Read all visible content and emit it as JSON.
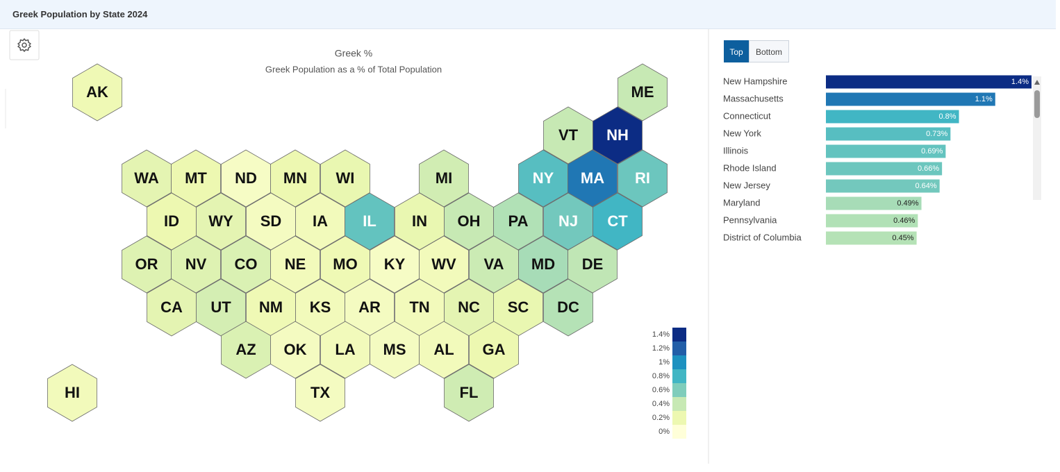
{
  "header": {
    "title": "Greek Population by State 2024"
  },
  "tabs": [
    "Top",
    "Bottom"
  ],
  "chart_data": [
    {
      "type": "hexmap",
      "title": "Greek %",
      "subtitle": "Greek Population as a % of Total Population",
      "categories": [
        "AK",
        "ME",
        "VT",
        "NH",
        "WA",
        "MT",
        "ND",
        "MN",
        "WI",
        "MI",
        "NY",
        "MA",
        "RI",
        "ID",
        "WY",
        "SD",
        "IA",
        "IL",
        "IN",
        "OH",
        "PA",
        "NJ",
        "CT",
        "OR",
        "NV",
        "CO",
        "NE",
        "MO",
        "KY",
        "WV",
        "VA",
        "MD",
        "DE",
        "CA",
        "UT",
        "NM",
        "KS",
        "AR",
        "TN",
        "NC",
        "SC",
        "DC",
        "AZ",
        "OK",
        "LA",
        "MS",
        "AL",
        "GA",
        "HI",
        "TX",
        "FL"
      ],
      "values": [
        0.18,
        0.4,
        0.4,
        1.4,
        0.25,
        0.2,
        0.1,
        0.2,
        0.22,
        0.35,
        0.73,
        1.1,
        0.66,
        0.2,
        0.25,
        0.12,
        0.15,
        0.69,
        0.22,
        0.4,
        0.46,
        0.64,
        0.8,
        0.28,
        0.28,
        0.3,
        0.15,
        0.18,
        0.1,
        0.15,
        0.38,
        0.49,
        0.42,
        0.25,
        0.33,
        0.18,
        0.15,
        0.12,
        0.15,
        0.25,
        0.22,
        0.45,
        0.3,
        0.12,
        0.15,
        0.12,
        0.15,
        0.2,
        0.15,
        0.12,
        0.36
      ],
      "legend": {
        "ticks": [
          {
            "value": 1.4,
            "label": "1.4%"
          },
          {
            "value": 1.2,
            "label": "1.2%"
          },
          {
            "value": 1,
            "label": "1%"
          },
          {
            "value": 0.8,
            "label": "0.8%"
          },
          {
            "value": 0.6,
            "label": "0.6%"
          },
          {
            "value": 0.4,
            "label": "0.4%"
          },
          {
            "value": 0.2,
            "label": "0.2%"
          },
          {
            "value": 0,
            "label": "0%"
          }
        ],
        "colors": [
          "#0c2c84",
          "#225ea8",
          "#1d91c0",
          "#41b6c4",
          "#7fcdbb",
          "#c7e9b4",
          "#edf8b1",
          "#ffffd9"
        ]
      }
    },
    {
      "type": "bar",
      "orientation": "horizontal",
      "categories": [
        "New Hampshire",
        "Massachusetts",
        "Connecticut",
        "New York",
        "Illinois",
        "Rhode Island",
        "New Jersey",
        "Maryland",
        "Pennsylvania",
        "District of Columbia"
      ],
      "values": [
        1.4,
        1.1,
        0.8,
        0.73,
        0.69,
        0.66,
        0.64,
        0.49,
        0.46,
        0.45
      ],
      "value_labels": [
        "1.4%",
        "1.1%",
        "0.8%",
        "0.73%",
        "0.69%",
        "0.66%",
        "0.64%",
        "0.49%",
        "0.46%",
        "0.45%"
      ],
      "xlim": [
        -0.3,
        1.4
      ]
    }
  ]
}
